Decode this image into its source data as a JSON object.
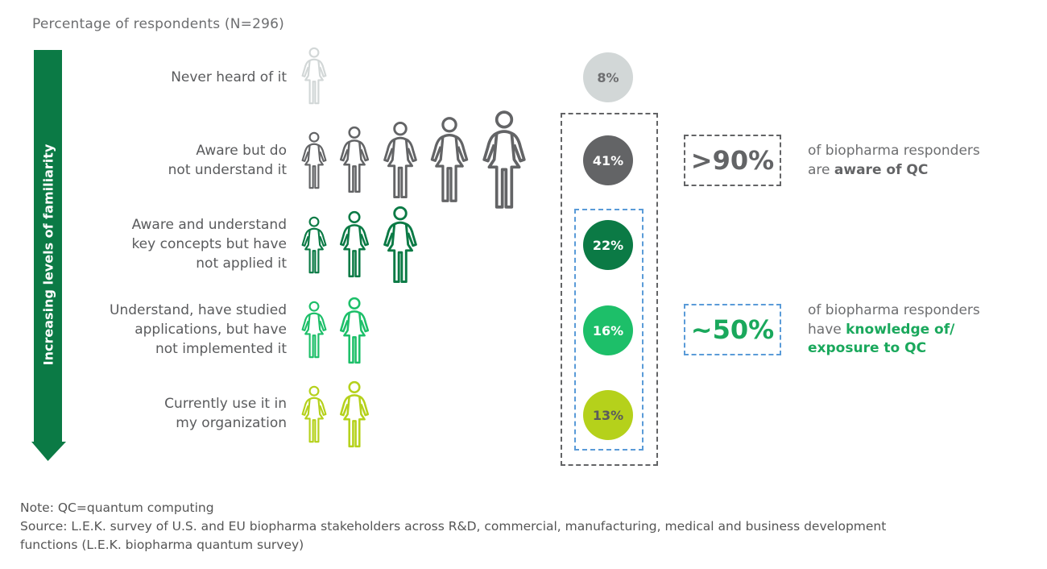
{
  "chart_data": {
    "type": "pictogram",
    "title": "Percentage of respondents (N=296)",
    "axis_label": "Increasing levels of familiarity",
    "categories": [
      {
        "label_lines": [
          "Never heard of it"
        ],
        "value": 8,
        "display": "8%",
        "icons": 1,
        "color": "#d2d7d7",
        "text_color": "#6d6e70"
      },
      {
        "label_lines": [
          "Aware but do",
          "not understand it"
        ],
        "value": 41,
        "display": "41%",
        "icons": 5,
        "color": "#636466",
        "text_color": "#ffffff"
      },
      {
        "label_lines": [
          "Aware and understand",
          "key concepts but have",
          "not applied it"
        ],
        "value": 22,
        "display": "22%",
        "icons": 3,
        "color": "#0b7a45",
        "text_color": "#ffffff"
      },
      {
        "label_lines": [
          "Understand, have studied",
          "applications, but have",
          "not implemented it"
        ],
        "value": 16,
        "display": "16%",
        "icons": 2,
        "color": "#1dbf69",
        "text_color": "#ffffff"
      },
      {
        "label_lines": [
          "Currently use it in",
          "my organization"
        ],
        "value": 13,
        "display": "13%",
        "icons": 2,
        "color": "#b5d11b",
        "text_color": "#5a5b5d"
      }
    ],
    "callouts": [
      {
        "value": ">90%",
        "color": "#636466",
        "text": "of biopharma responders",
        "text2": "are ",
        "bold": "aware of QC",
        "bold_color": "#636466"
      },
      {
        "value": "~50%",
        "color": "#1aa85c",
        "text": "of biopharma responders",
        "text2": "have ",
        "bold": "knowledge of/",
        "bold2": "exposure to QC",
        "bold_color": "#1aa85c"
      }
    ],
    "arrow_color": "#0b7a45",
    "grey_box_color": "#636466",
    "blue_box_color": "#5a9bd8"
  },
  "footer": {
    "note": "Note: QC=quantum computing",
    "source1": "Source: L.E.K. survey of U.S. and EU biopharma stakeholders across R&D, commercial, manufacturing, medical and business development",
    "source2": "functions (L.E.K. biopharma quantum survey)"
  }
}
